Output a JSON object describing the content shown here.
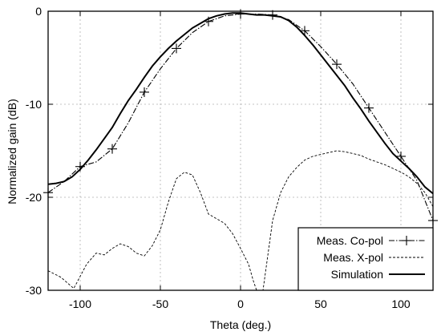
{
  "chart_data": {
    "type": "line",
    "title": "",
    "xlabel": "Theta (deg.)",
    "ylabel": "Normalized gain (dB)",
    "xlim": [
      -120,
      120
    ],
    "ylim": [
      -30,
      0
    ],
    "x_ticks": [
      -100,
      -50,
      0,
      50,
      100
    ],
    "y_ticks": [
      0,
      -10,
      -20,
      -30
    ],
    "x_tick_labels": [
      "-100",
      "-50",
      "0",
      "50",
      "100"
    ],
    "y_tick_labels": [
      "0",
      "-10",
      "-20",
      "-30"
    ],
    "grid": true,
    "legend_position": "bottom-right",
    "series": [
      {
        "name": "Meas. Co-pol",
        "style": "dash-dot",
        "marker": "plus",
        "x": [
          -120,
          -110,
          -100,
          -90,
          -80,
          -70,
          -60,
          -50,
          -40,
          -30,
          -20,
          -10,
          0,
          10,
          20,
          30,
          40,
          50,
          60,
          70,
          80,
          90,
          100,
          110,
          120
        ],
        "values": [
          -19.5,
          -18.3,
          -16.7,
          -16.2,
          -14.8,
          -12.0,
          -8.7,
          -6.2,
          -4.0,
          -2.3,
          -1.1,
          -0.5,
          -0.3,
          -0.3,
          -0.4,
          -0.9,
          -2.1,
          -3.8,
          -5.7,
          -7.8,
          -10.4,
          -13.0,
          -15.6,
          -18.2,
          -22.5
        ],
        "marker_x": [
          -120,
          -100,
          -80,
          -60,
          -40,
          -20,
          0,
          20,
          40,
          60,
          80,
          100,
          120
        ],
        "marker_values": [
          -19.5,
          -16.7,
          -14.8,
          -8.7,
          -4.0,
          -1.1,
          -0.3,
          -0.4,
          -2.1,
          -5.7,
          -10.4,
          -15.6,
          -22.5
        ]
      },
      {
        "name": "Meas. X-pol",
        "style": "dashed",
        "x": [
          -120,
          -112,
          -104,
          -100,
          -96,
          -90,
          -85,
          -80,
          -75,
          -70,
          -65,
          -60,
          -55,
          -50,
          -45,
          -40,
          -35,
          -30,
          -25,
          -20,
          -15,
          -10,
          -5,
          0,
          5,
          8,
          10,
          14,
          16,
          20,
          25,
          30,
          35,
          40,
          45,
          50,
          55,
          60,
          65,
          70,
          75,
          80,
          85,
          90,
          95,
          100,
          105,
          110,
          115,
          120
        ],
        "values": [
          -27.9,
          -28.6,
          -29.8,
          -28.5,
          -27.2,
          -26.0,
          -26.2,
          -25.5,
          -25.0,
          -25.3,
          -26.0,
          -26.3,
          -25.2,
          -23.5,
          -20.5,
          -18.0,
          -17.3,
          -17.6,
          -19.5,
          -21.8,
          -22.3,
          -22.8,
          -23.9,
          -25.5,
          -27.2,
          -29.0,
          -30.0,
          -30.0,
          -27.5,
          -22.5,
          -19.5,
          -17.8,
          -16.8,
          -16.0,
          -15.6,
          -15.4,
          -15.2,
          -15.0,
          -15.1,
          -15.3,
          -15.5,
          -15.9,
          -16.2,
          -16.5,
          -16.9,
          -17.3,
          -17.8,
          -18.5,
          -19.5,
          -21.0
        ]
      },
      {
        "name": "Simulation",
        "style": "solid",
        "x": [
          -120,
          -115,
          -110,
          -105,
          -100,
          -95,
          -90,
          -85,
          -80,
          -75,
          -70,
          -65,
          -60,
          -55,
          -50,
          -45,
          -40,
          -35,
          -30,
          -25,
          -20,
          -15,
          -10,
          -5,
          0,
          5,
          10,
          15,
          20,
          25,
          30,
          35,
          40,
          45,
          50,
          55,
          60,
          65,
          70,
          75,
          80,
          85,
          90,
          95,
          100,
          105,
          110,
          115,
          120
        ],
        "values": [
          -18.6,
          -18.5,
          -18.3,
          -17.8,
          -17.0,
          -16.0,
          -14.9,
          -13.7,
          -12.5,
          -11.0,
          -9.6,
          -8.4,
          -7.1,
          -5.9,
          -4.9,
          -4.0,
          -3.2,
          -2.5,
          -1.8,
          -1.3,
          -0.8,
          -0.5,
          -0.3,
          -0.2,
          -0.2,
          -0.3,
          -0.4,
          -0.4,
          -0.5,
          -0.6,
          -1.0,
          -1.7,
          -2.6,
          -3.6,
          -4.7,
          -5.8,
          -6.9,
          -8.0,
          -9.3,
          -10.5,
          -11.8,
          -13.0,
          -14.2,
          -15.3,
          -16.1,
          -16.9,
          -17.8,
          -18.9,
          -19.6
        ]
      }
    ]
  }
}
